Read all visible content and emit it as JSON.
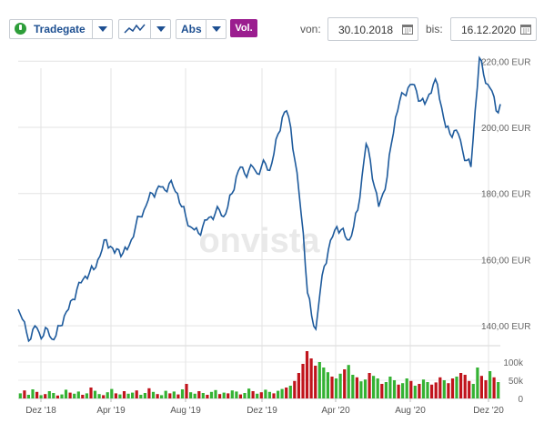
{
  "toolbar": {
    "exchange_label": "Tradegate",
    "chart_type_icon": "line-chart-icon",
    "scale_label": "Abs",
    "volume_label": "Vol.",
    "from_label": "von:",
    "from_date": "30.10.2018",
    "to_label": "bis:",
    "to_date": "16.12.2020"
  },
  "watermark": "onvista",
  "colors": {
    "accent": "#1d4f91",
    "line": "#1d5a9c",
    "volume_up": "#34b233",
    "volume_down": "#c0141c",
    "volume_button": "#9b1d8f"
  },
  "chart_data": [
    {
      "type": "line",
      "series_note": "",
      "x_start": "30.10.2018",
      "x_end": "16.12.2020",
      "x_ticks": [
        "Dez '18",
        "Apr '19",
        "Aug '19",
        "Dez '19",
        "Apr '20",
        "Aug '20",
        "Dez '20"
      ],
      "y_ticks": [
        "140,00 EUR",
        "160,00 EUR",
        "180,00 EUR",
        "200,00 EUR",
        "220,00 EUR"
      ],
      "ylim": [
        134,
        222
      ],
      "grid": true,
      "values": [
        145,
        142,
        138,
        136,
        140,
        138,
        137,
        139,
        136,
        137,
        140,
        143,
        145,
        148,
        151,
        153,
        155,
        156,
        157,
        160,
        163,
        166,
        164,
        162,
        163,
        162,
        163,
        166,
        170,
        173,
        175,
        178,
        180,
        181,
        182,
        181,
        183,
        182,
        180,
        176,
        173,
        170,
        169,
        168,
        170,
        172,
        173,
        174,
        175,
        173,
        176,
        180,
        185,
        188,
        186,
        187,
        188,
        186,
        188,
        189,
        187,
        192,
        198,
        203,
        205,
        200,
        190,
        180,
        168,
        150,
        143,
        139,
        150,
        158,
        163,
        167,
        170,
        169,
        167,
        166,
        170,
        175,
        185,
        195,
        190,
        182,
        176,
        180,
        185,
        195,
        203,
        208,
        210,
        212,
        213,
        211,
        208,
        207,
        210,
        213,
        213,
        206,
        200,
        198,
        199,
        198,
        193,
        190,
        188,
        205,
        221,
        216,
        213,
        211,
        205,
        207
      ]
    },
    {
      "type": "bar",
      "series_note": "volume",
      "y_ticks": [
        "100k",
        "50k",
        "0"
      ],
      "ylim": [
        0,
        130
      ],
      "values": [
        14,
        22,
        10,
        25,
        18,
        9,
        12,
        20,
        15,
        8,
        11,
        24,
        16,
        13,
        19,
        10,
        14,
        30,
        21,
        12,
        9,
        17,
        26,
        14,
        11,
        20,
        13,
        16,
        22,
        10,
        15,
        28,
        18,
        12,
        9,
        21,
        14,
        19,
        11,
        25,
        40,
        17,
        13,
        20,
        15,
        10,
        18,
        23,
        12,
        16,
        14,
        22,
        19,
        11,
        15,
        27,
        20,
        13,
        17,
        24,
        18,
        14,
        21,
        26,
        30,
        35,
        48,
        70,
        95,
        130,
        110,
        90,
        100,
        85,
        72,
        60,
        55,
        68,
        80,
        92,
        65,
        58,
        47,
        52,
        70,
        62,
        55,
        40,
        45,
        60,
        50,
        38,
        42,
        55,
        48,
        35,
        40,
        52,
        45,
        38,
        44,
        58,
        50,
        42,
        55,
        60,
        70,
        65,
        48,
        40,
        85,
        62,
        50,
        75,
        58,
        45
      ],
      "up": [
        1,
        0,
        1,
        1,
        0,
        1,
        0,
        1,
        1,
        0,
        1,
        1,
        0,
        1,
        1,
        0,
        1,
        0,
        1,
        1,
        0,
        1,
        1,
        0,
        1,
        0,
        1,
        1,
        0,
        1,
        1,
        0,
        1,
        0,
        1,
        1,
        0,
        1,
        0,
        1,
        0,
        1,
        1,
        0,
        1,
        0,
        1,
        1,
        0,
        1,
        0,
        1,
        1,
        0,
        1,
        1,
        0,
        1,
        0,
        1,
        1,
        0,
        1,
        1,
        0,
        1,
        0,
        0,
        0,
        0,
        0,
        0,
        1,
        1,
        1,
        0,
        1,
        1,
        0,
        1,
        1,
        0,
        1,
        1,
        0,
        1,
        1,
        0,
        1,
        1,
        1,
        0,
        1,
        1,
        0,
        1,
        0,
        1,
        1,
        0,
        0,
        0,
        1,
        0,
        0,
        1,
        0,
        0,
        0,
        1,
        1,
        0,
        0,
        1,
        0,
        1
      ]
    }
  ]
}
